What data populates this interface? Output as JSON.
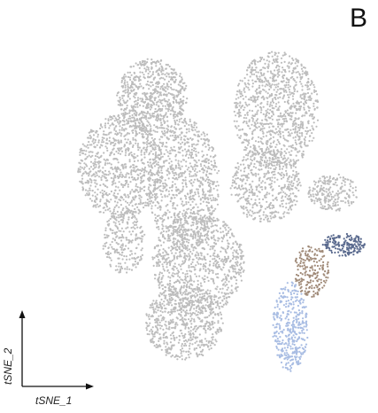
{
  "panel_label": "B",
  "chart_data": {
    "type": "scatter",
    "title": "",
    "xlabel": "tSNE_1",
    "ylabel": "tSNE_2",
    "axes_style": "arrows-only, no ticks",
    "grid": false,
    "legend": "none",
    "colors": {
      "background_cells": "#bdbdbd",
      "cluster_navy": "#5a6a8e",
      "cluster_tan": "#a08a78",
      "cluster_lightblue": "#a9bde3"
    },
    "xlim": [
      0,
      100
    ],
    "ylim": [
      0,
      100
    ],
    "series": [
      {
        "color": "#bdbdbd",
        "regions": [
          {
            "cx": 38,
            "cy": 79,
            "rx": 10,
            "ry": 10,
            "n": 700
          },
          {
            "cx": 29,
            "cy": 60,
            "rx": 12,
            "ry": 14,
            "n": 900
          },
          {
            "cx": 47,
            "cy": 55,
            "rx": 10,
            "ry": 18,
            "n": 900
          },
          {
            "cx": 73,
            "cy": 75,
            "rx": 12,
            "ry": 16,
            "n": 1000
          },
          {
            "cx": 70,
            "cy": 55,
            "rx": 10,
            "ry": 10,
            "n": 500
          },
          {
            "cx": 51,
            "cy": 34,
            "rx": 13,
            "ry": 14,
            "n": 900
          },
          {
            "cx": 47,
            "cy": 18,
            "rx": 11,
            "ry": 10,
            "n": 650
          },
          {
            "cx": 30,
            "cy": 40,
            "rx": 6,
            "ry": 9,
            "n": 250
          },
          {
            "cx": 89,
            "cy": 53,
            "rx": 7,
            "ry": 5,
            "n": 220
          }
        ]
      },
      {
        "color": "#5a6a8e",
        "regions": [
          {
            "cx": 92,
            "cy": 39,
            "rx": 6,
            "ry": 3,
            "n": 170
          }
        ]
      },
      {
        "color": "#a08a78",
        "regions": [
          {
            "cx": 83,
            "cy": 32,
            "rx": 5,
            "ry": 7,
            "n": 190
          }
        ]
      },
      {
        "color": "#a9bde3",
        "regions": [
          {
            "cx": 77,
            "cy": 17,
            "rx": 5,
            "ry": 12,
            "n": 380
          }
        ]
      }
    ]
  }
}
